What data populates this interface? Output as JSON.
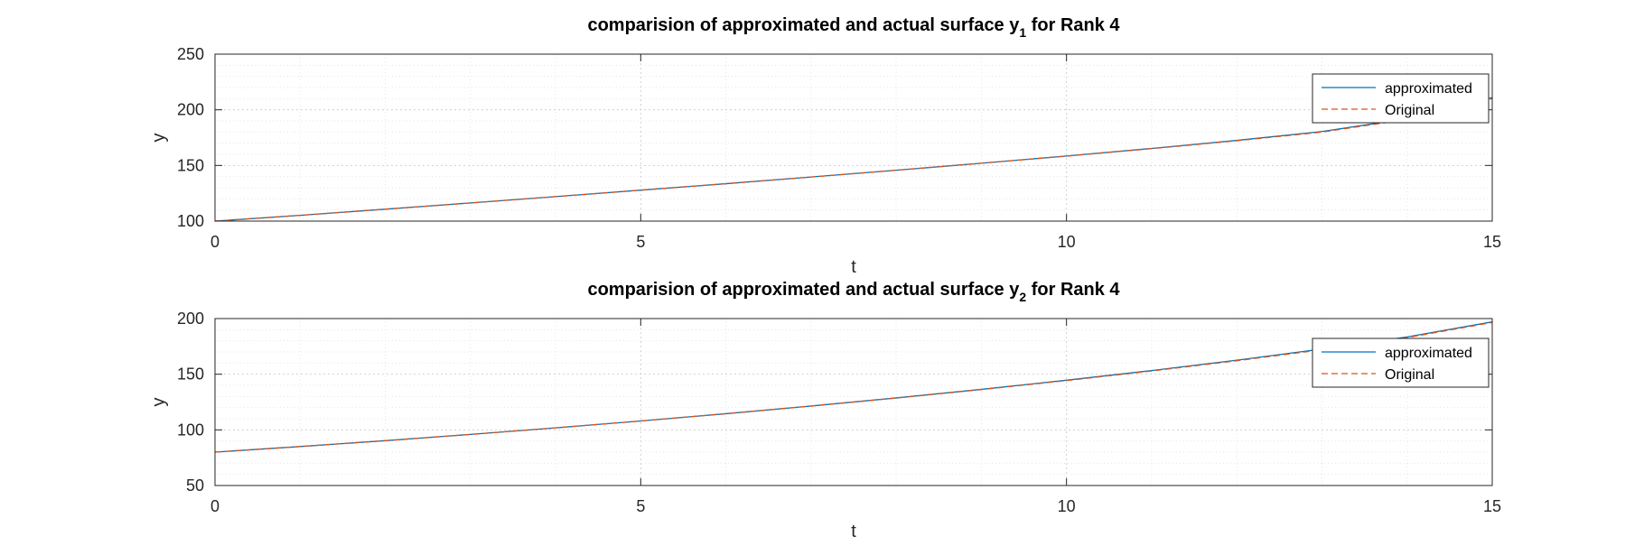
{
  "chart_data": [
    {
      "type": "line",
      "title_prefix": "comparision of approximated and actual surface y",
      "title_subscript": "1",
      "title_suffix": " for Rank 4",
      "xlabel": "t",
      "ylabel": "y",
      "xlim": [
        0,
        15
      ],
      "ylim": [
        100,
        250
      ],
      "xticks": [
        0,
        5,
        10,
        15
      ],
      "yticks": [
        100,
        150,
        200,
        250
      ],
      "grid": true,
      "minor_grid": true,
      "legend_position": "top-right",
      "x": [
        0,
        1,
        2,
        3,
        4,
        5,
        6,
        7,
        8,
        9,
        10,
        11,
        12,
        13,
        14,
        15
      ],
      "series": [
        {
          "name": "approximated",
          "color": "#0072BD",
          "style": "solid",
          "values": [
            100,
            105.2,
            110.7,
            116.3,
            122.0,
            127.8,
            133.6,
            139.6,
            145.7,
            152.0,
            158.5,
            165.3,
            172.5,
            180.5,
            192.0,
            211.0
          ]
        },
        {
          "name": "Original",
          "color": "#D95319",
          "style": "dashed",
          "values": [
            100,
            105.2,
            110.7,
            116.3,
            122.0,
            127.8,
            133.6,
            139.6,
            145.7,
            152.0,
            158.4,
            165.1,
            172.2,
            180.0,
            191.3,
            210.0
          ]
        }
      ]
    },
    {
      "type": "line",
      "title_prefix": "comparision of approximated and actual surface y",
      "title_subscript": "2",
      "title_suffix": " for Rank 4",
      "xlabel": "t",
      "ylabel": "y",
      "xlim": [
        0,
        15
      ],
      "ylim": [
        50,
        200
      ],
      "xticks": [
        0,
        5,
        10,
        15
      ],
      "yticks": [
        50,
        100,
        150,
        200
      ],
      "grid": true,
      "minor_grid": true,
      "legend_position": "top-right",
      "x": [
        0,
        1,
        2,
        3,
        4,
        5,
        6,
        7,
        8,
        9,
        10,
        11,
        12,
        13,
        14,
        15
      ],
      "series": [
        {
          "name": "approximated",
          "color": "#0072BD",
          "style": "solid",
          "values": [
            80,
            85.0,
            90.3,
            95.9,
            101.8,
            108.0,
            114.5,
            121.4,
            128.7,
            136.4,
            144.6,
            153.3,
            162.6,
            172.6,
            183.5,
            197.0
          ]
        },
        {
          "name": "Original",
          "color": "#D95319",
          "style": "dashed",
          "values": [
            80,
            85.0,
            90.3,
            95.9,
            101.8,
            108.0,
            114.5,
            121.4,
            128.6,
            136.2,
            144.3,
            152.9,
            162.1,
            172.0,
            182.9,
            196.5
          ]
        }
      ]
    }
  ]
}
